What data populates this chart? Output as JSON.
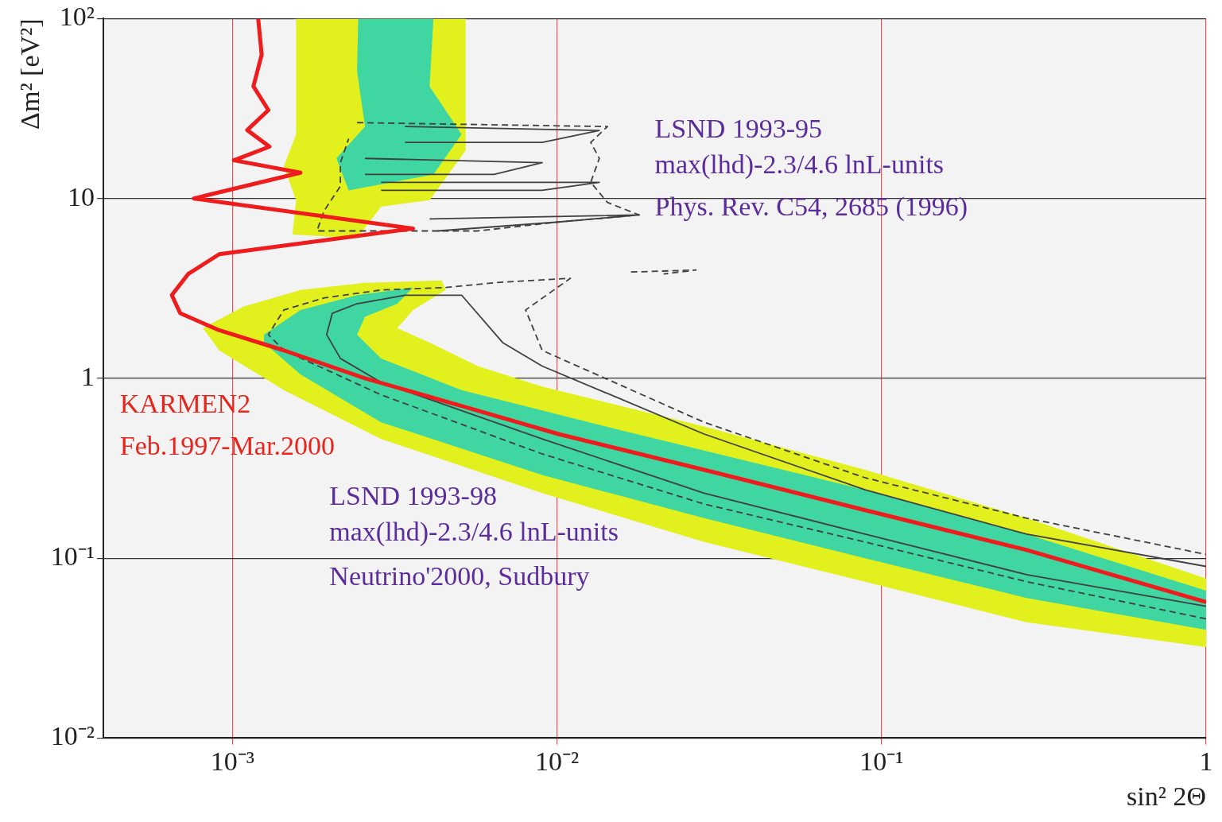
{
  "chart_data": {
    "type": "line",
    "xlabel": "sin² 2Θ",
    "ylabel": "Δm² [eV²]",
    "log": "xy",
    "grid": true,
    "xlim": [
      0.0004,
      1
    ],
    "ylim": [
      0.01,
      100
    ],
    "xticks": [
      {
        "value": 0.001,
        "label": "10⁻³"
      },
      {
        "value": 0.01,
        "label": "10⁻²"
      },
      {
        "value": 0.1,
        "label": "10⁻¹"
      },
      1
    ],
    "yticks": [
      {
        "value": 0.01,
        "label": "10⁻²"
      },
      {
        "value": 0.1,
        "label": "10⁻¹"
      },
      1,
      10,
      {
        "value": 100,
        "label": "10²"
      }
    ],
    "annotations": [
      "KARMEN2",
      "Feb.1997-Mar.2000",
      "LSND 1993-95",
      "max(lhd)-2.3/4.6 lnL-units",
      "Phys. Rev. C54, 2685 (1996)",
      "LSND 1993-98",
      "max(lhd)-2.3/4.6 lnL-units",
      "Neutrino'2000, Sudbury"
    ],
    "series": [
      {
        "type": "area",
        "color": "#e2f01e",
        "x": [
          0.00081,
          0.00108,
          0.00162,
          0.00256,
          0.00441,
          0.00454,
          0.0036,
          0.00322,
          0.00405,
          0.0057,
          0.009,
          0.0284,
          0.089,
          0.28,
          1,
          1,
          0.28,
          0.089,
          0.0284,
          0.009,
          0.00287,
          0.00144,
          0.00091,
          0.00081
        ],
        "values": [
          1.9,
          2.5,
          3.1,
          3.4,
          3.5,
          3.1,
          2.4,
          1.9,
          1.58,
          1.17,
          0.9,
          0.54,
          0.31,
          0.167,
          0.077,
          0.032,
          0.044,
          0.074,
          0.123,
          0.23,
          0.46,
          0.86,
          1.43,
          1.9
        ]
      },
      {
        "type": "area",
        "color": "#e2f01e",
        "x": [
          0.00157,
          0.00523,
          0.00523,
          0.00405,
          0.00287,
          0.00242,
          0.00153,
          0.00157,
          0.00144,
          0.00157,
          0.00157
        ],
        "values": [
          100,
          100,
          18.5,
          9.8,
          9,
          6,
          6.3,
          9.8,
          15.1,
          22.7,
          100
        ]
      },
      {
        "type": "area",
        "color": "#3fd6a2",
        "x": [
          0.00125,
          0.00162,
          0.00242,
          0.0036,
          0.00322,
          0.00256,
          0.00242,
          0.00287,
          0.00508,
          0.016,
          0.089,
          0.28,
          1,
          1,
          0.28,
          0.089,
          0.0284,
          0.009,
          0.00287,
          0.00162,
          0.00125,
          0.00125
        ],
        "values": [
          1.75,
          2.4,
          2.9,
          3.2,
          2.6,
          2.2,
          1.75,
          1.29,
          0.86,
          0.51,
          0.24,
          0.136,
          0.066,
          0.04,
          0.06,
          0.1,
          0.167,
          0.29,
          0.57,
          1.05,
          1.58,
          1.75
        ]
      },
      {
        "type": "area",
        "color": "#3fd6a2",
        "x": [
          0.00244,
          0.00416,
          0.00405,
          0.00508,
          0.00416,
          0.00228,
          0.00209,
          0.00256,
          0.00242,
          0.00244
        ],
        "values": [
          100,
          100,
          41.9,
          22.7,
          13.6,
          11.1,
          16.7,
          25.1,
          51,
          100
        ]
      },
      {
        "type": "line",
        "color": "#404040",
        "x": [
          1,
          0.28,
          0.089,
          0.0284,
          0.009,
          0.00287,
          0.00215,
          0.00195,
          0.00203,
          0.00242,
          0.0034,
          0.00508,
          0.0068,
          0.009,
          0.0284,
          0.089,
          0.28,
          1
        ],
        "values": [
          0.054,
          0.081,
          0.136,
          0.23,
          0.46,
          0.95,
          1.29,
          1.75,
          2.3,
          2.6,
          2.9,
          2.9,
          1.58,
          1.17,
          0.49,
          0.24,
          0.136,
          0.09
        ]
      },
      {
        "type": "line",
        "color": "#404040",
        "line_style": "dashed",
        "x": [
          1,
          0.28,
          0.089,
          0.0284,
          0.009,
          0.00287,
          0.00144,
          0.00129,
          0.00144,
          0.00192,
          0.00287,
          0.00454,
          0.0064,
          0.011,
          0.008,
          0.009,
          0.0284,
          0.089,
          0.28,
          1
        ],
        "values": [
          0.046,
          0.074,
          0.123,
          0.2,
          0.38,
          0.81,
          1.43,
          1.75,
          2.4,
          2.8,
          3.1,
          3.2,
          3.4,
          3.6,
          2.4,
          1.43,
          0.57,
          0.28,
          0.167,
          0.105
        ]
      },
      {
        "type": "line",
        "color": "#404040",
        "line_style": "dashed",
        "x": [
          0.00242,
          0.0143,
          0.0127,
          0.0135,
          0.0127,
          0.0143,
          0.0179,
          0.0101,
          0.0057,
          0.0036,
          0.00182,
          0.00192,
          0.00215,
          0.00215,
          0.00228
        ],
        "values": [
          26.4,
          25.1,
          20.5,
          16.7,
          12.3,
          9.5,
          8.1,
          7.4,
          6.6,
          6.6,
          6.6,
          8.6,
          11.7,
          15.8,
          21.5
        ]
      },
      {
        "type": "line",
        "color": "#404040",
        "x": [
          0.0034,
          0.0135,
          0.009,
          0.0034
        ],
        "values": [
          25.1,
          23.9,
          20.5,
          20.5
        ]
      },
      {
        "type": "line",
        "color": "#404040",
        "x": [
          0.00256,
          0.009,
          0.0064,
          0.00256
        ],
        "values": [
          16.7,
          15.8,
          13.6,
          13.6
        ]
      },
      {
        "type": "line",
        "color": "#404040",
        "x": [
          0.00287,
          0.0135,
          0.009,
          0.00287
        ],
        "values": [
          12.3,
          12.3,
          11.1,
          11.1
        ]
      },
      {
        "type": "line",
        "color": "#404040",
        "x": [
          0.00405,
          0.0179,
          0.0101,
          0.00428
        ],
        "values": [
          7.7,
          8.1,
          7.4,
          6.6
        ]
      },
      {
        "type": "line",
        "color": "#404040",
        "line_style": "dashed",
        "x": [
          0.0169,
          0.0268,
          0.0213
        ],
        "values": [
          3.9,
          4.0,
          3.8
        ]
      },
      {
        "type": "line",
        "color": "#ee1c1c",
        "x": [
          0.0012,
          0.00123,
          0.00116,
          0.00129,
          0.00111,
          0.0013,
          0.00101,
          0.00162,
          0.00076,
          0.0036,
          0.00091,
          0.00073,
          0.00065,
          0.00069,
          0.00091,
          0.00144,
          0.00256,
          0.0051,
          0.0101,
          0.0284,
          0.089,
          0.28,
          1
        ],
        "values": [
          100,
          63,
          42,
          31,
          24,
          19.4,
          16.3,
          13.9,
          10,
          6.8,
          4.9,
          3.8,
          2.9,
          2.3,
          1.85,
          1.43,
          1.0,
          0.7,
          0.49,
          0.31,
          0.185,
          0.111,
          0.057
        ]
      }
    ]
  }
}
